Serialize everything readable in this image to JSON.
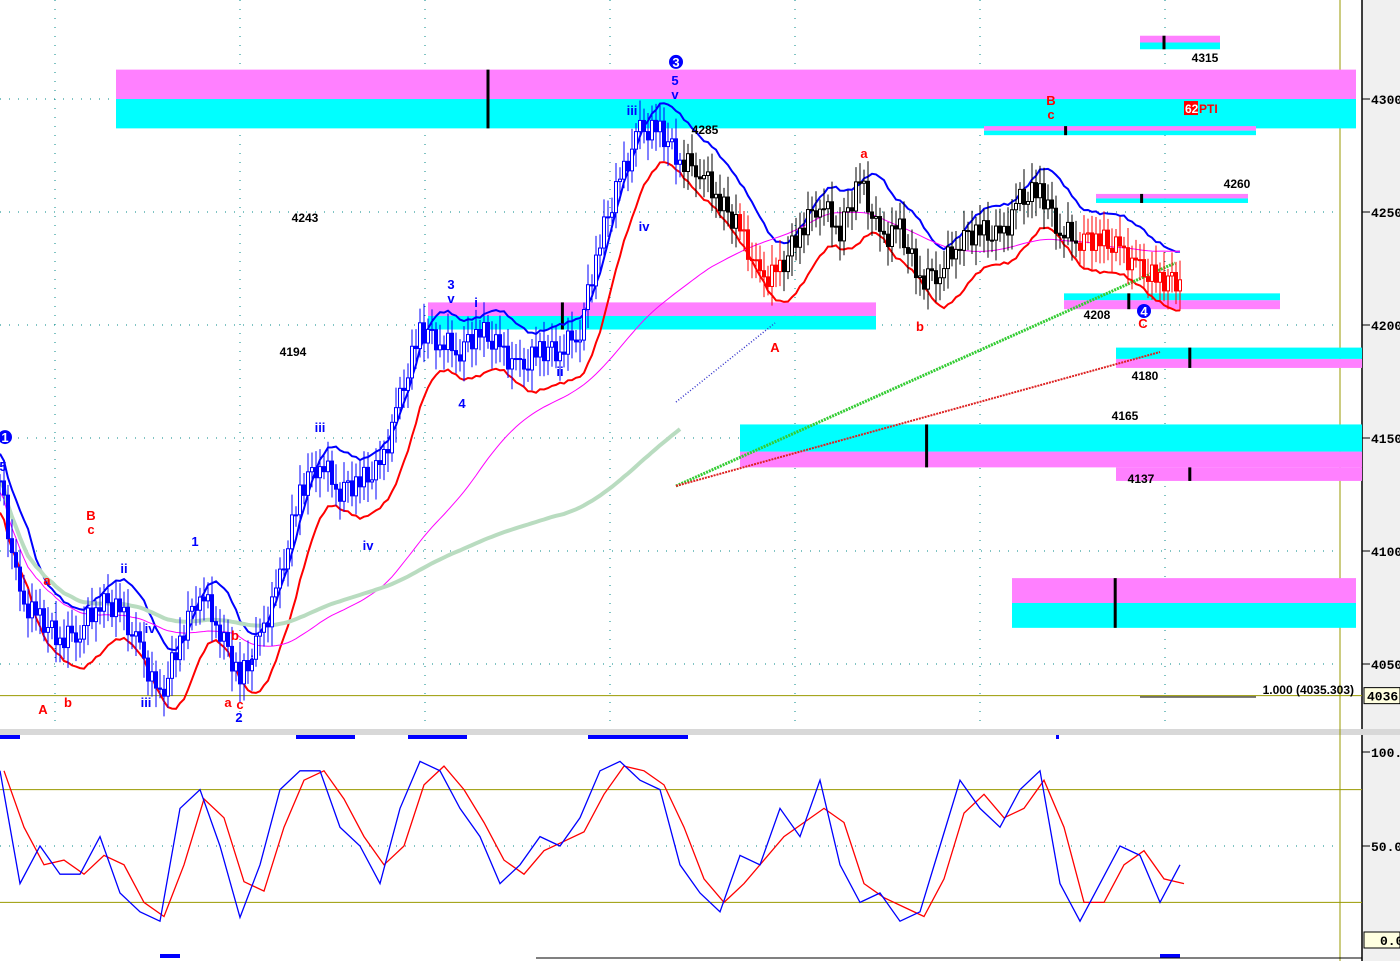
{
  "chart_data": [
    {
      "type": "candlestick",
      "title": "",
      "ylim": [
        4020,
        4340
      ],
      "y_ticks": [
        "4300",
        "4250",
        "4200",
        "4150",
        "4100",
        "4050"
      ],
      "last_value_box": "4036.",
      "grid": "dotted",
      "bar_step_label": "",
      "closes": [
        4131,
        4078,
        4070,
        4061,
        4065,
        4078,
        4074,
        4056,
        4034,
        4061,
        4083,
        4065,
        4043,
        4061,
        4087,
        4127,
        4140,
        4127,
        4131,
        4136,
        4167,
        4198,
        4193,
        4189,
        4198,
        4189,
        4180,
        4189,
        4189,
        4198,
        4238,
        4264,
        4286,
        4286,
        4273,
        4269,
        4255,
        4242,
        4220,
        4224,
        4242,
        4255,
        4242,
        4264,
        4238,
        4242,
        4220,
        4224,
        4238,
        4242,
        4238,
        4255,
        4260,
        4242,
        4238,
        4238,
        4233,
        4224,
        4220,
        4220
      ],
      "colors": {
        "up_phase": "#0000ff",
        "neutral": "#000000",
        "down_phase": "#ff0000",
        "upper_band": "#0000ff",
        "lower_band": "#ff0000",
        "ma": "#ff00ff",
        "long_ma": "#b9dcc0",
        "projection_up": "#33cc33",
        "projection_down": "#dd2222",
        "zone_magenta": "#ff80ff",
        "zone_cyan": "#00ffff",
        "ref_line": "#999900"
      },
      "reference_line": {
        "value": 4036,
        "label": "1.000 (4035.303)"
      },
      "zones": [
        {
          "from": 5.8,
          "to": 67.8,
          "magenta": [
            4300,
            4313
          ],
          "cyan": [
            4287,
            4300
          ]
        },
        {
          "from": 57,
          "to": 61,
          "magenta": [
            4325,
            4328
          ],
          "cyan": [
            4322,
            4325
          ]
        },
        {
          "from": 49.2,
          "to": 62.8,
          "magenta": [
            4286,
            4288
          ],
          "cyan": [
            4284,
            4286
          ]
        },
        {
          "from": 54.8,
          "to": 62.4,
          "magenta": [
            4256,
            4258
          ],
          "cyan": [
            4254,
            4256
          ]
        },
        {
          "from": 21.4,
          "to": 43.8,
          "magenta": [
            4204,
            4210
          ],
          "cyan": [
            4198,
            4204
          ]
        },
        {
          "from": 53.2,
          "to": 64,
          "magenta": [
            4207,
            4211
          ],
          "cyan": [
            4211,
            4214
          ]
        },
        {
          "from": 55.8,
          "to": 68.1,
          "magenta": [
            4181,
            4185
          ],
          "cyan": [
            4185,
            4190
          ]
        },
        {
          "from": 37,
          "to": 68.1,
          "magenta": [
            4137,
            4144
          ],
          "cyan": [
            4144,
            4156
          ]
        },
        {
          "from": 55.8,
          "to": 68.1,
          "magenta": [
            4131,
            4137
          ],
          "cyan": [
            4137,
            4137
          ]
        },
        {
          "from": 50.6,
          "to": 67.8,
          "magenta": [
            4077,
            4088
          ],
          "cyan": [
            4066,
            4077
          ]
        }
      ],
      "wave_labels": [
        {
          "text": "1",
          "color": "#0000ff",
          "bar": 0.25,
          "price": 4150.4,
          "circled": true
        },
        {
          "text": "5",
          "color": "#0000ff",
          "bar": 0.15,
          "price": 4137.6
        },
        {
          "text": "A",
          "color": "#ff0000",
          "bar": 2.15,
          "price": 4030.1
        },
        {
          "text": "a",
          "color": "#ff0000",
          "bar": 2.35,
          "price": 4087.2
        },
        {
          "text": "b",
          "color": "#ff0000",
          "bar": 3.4,
          "price": 4033.2
        },
        {
          "text": "B",
          "color": "#ff0000",
          "bar": 4.55,
          "price": 4115.9
        },
        {
          "text": "c",
          "color": "#ff0000",
          "bar": 4.55,
          "price": 4109.7
        },
        {
          "text": "ii",
          "color": "#0000ff",
          "bar": 6.2,
          "price": 4092.5
        },
        {
          "text": "iv",
          "color": "#0000ff",
          "bar": 7.5,
          "price": 4065.9
        },
        {
          "text": "iii",
          "color": "#0000ff",
          "bar": 7.3,
          "price": 4033.2
        },
        {
          "text": "1",
          "color": "#0000ff",
          "bar": 9.75,
          "price": 4104.4
        },
        {
          "text": "a",
          "color": "#ff0000",
          "bar": 11.4,
          "price": 4033.2
        },
        {
          "text": "c",
          "color": "#ff0000",
          "bar": 12.0,
          "price": 4032.3
        },
        {
          "text": "2",
          "color": "#0000ff",
          "bar": 11.95,
          "price": 4026.5
        },
        {
          "text": "b",
          "color": "#ff0000",
          "bar": 11.75,
          "price": 4062.8
        },
        {
          "text": "i",
          "color": "#0000ff",
          "bar": 12.6,
          "price": 4051.8
        },
        {
          "text": "iii",
          "color": "#0000ff",
          "bar": 16.0,
          "price": 4154.9
        },
        {
          "text": "iv",
          "color": "#0000ff",
          "bar": 18.4,
          "price": 4102.7
        },
        {
          "text": "3",
          "color": "#0000ff",
          "bar": 22.55,
          "price": 4218.1
        },
        {
          "text": "v",
          "color": "#0000ff",
          "bar": 22.55,
          "price": 4211.9
        },
        {
          "text": "i",
          "color": "#0000ff",
          "bar": 23.8,
          "price": 4210.2
        },
        {
          "text": "4",
          "color": "#0000ff",
          "bar": 23.1,
          "price": 4165.5
        },
        {
          "text": "ii",
          "color": "#0000ff",
          "bar": 28.0,
          "price": 4179.6
        },
        {
          "text": "iii",
          "color": "#0000ff",
          "bar": 31.6,
          "price": 4295.1
        },
        {
          "text": "iv",
          "color": "#0000ff",
          "bar": 32.2,
          "price": 4243.8
        },
        {
          "text": "5",
          "color": "#0000ff",
          "bar": 33.75,
          "price": 4308.4
        },
        {
          "text": "v",
          "color": "#0000ff",
          "bar": 33.75,
          "price": 4302.2
        },
        {
          "text": "3",
          "color": "#0000ff",
          "bar": 33.8,
          "price": 4316.4,
          "circled": true
        },
        {
          "text": "a",
          "color": "#ff0000",
          "bar": 43.2,
          "price": 4276.1
        },
        {
          "text": "A",
          "color": "#ff0000",
          "bar": 38.75,
          "price": 4190.3
        },
        {
          "text": "b",
          "color": "#ff0000",
          "bar": 46.0,
          "price": 4199.6
        },
        {
          "text": "B",
          "color": "#ff0000",
          "bar": 52.55,
          "price": 4299.6
        },
        {
          "text": "c",
          "color": "#ff0000",
          "bar": 52.55,
          "price": 4293.4
        },
        {
          "text": "C",
          "color": "#ff0000",
          "bar": 57.15,
          "price": 4200.9
        },
        {
          "text": "4",
          "color": "#0000ff",
          "bar": 57.2,
          "price": 4206.2,
          "circled": true
        }
      ],
      "price_labels": [
        {
          "text": "4315",
          "bar": 60.25,
          "price": 4318.1
        },
        {
          "text": "4285",
          "bar": 35.25,
          "price": 4286.3
        },
        {
          "text": "4243",
          "bar": 15.25,
          "price": 4247.3
        },
        {
          "text": "4194",
          "bar": 14.65,
          "price": 4188.1
        },
        {
          "text": "4260",
          "bar": 61.85,
          "price": 4262.4
        },
        {
          "text": "4208",
          "bar": 54.85,
          "price": 4204.4
        },
        {
          "text": "4180",
          "bar": 57.25,
          "price": 4177.4
        },
        {
          "text": "4165",
          "bar": 56.25,
          "price": 4159.7
        },
        {
          "text": "4137",
          "bar": 57.05,
          "price": 4131.9
        }
      ],
      "badge": {
        "number": "62",
        "text": "PTI",
        "bar": 60.0,
        "price": 4296
      }
    },
    {
      "type": "line",
      "title": "",
      "ylim": [
        0,
        100
      ],
      "y_ticks": [
        "100.0",
        "50.00"
      ],
      "last_value_box": "0.0",
      "levels": [
        80,
        20
      ],
      "series": [
        {
          "color": "#0000ff",
          "values": [
            90,
            30,
            50,
            35,
            35,
            55,
            25,
            15,
            10,
            70,
            80,
            50,
            12,
            40,
            80,
            90,
            90,
            60,
            50,
            30,
            70,
            95,
            90,
            70,
            55,
            30,
            40,
            55,
            50,
            65,
            90,
            95,
            85,
            80,
            40,
            25,
            15,
            45,
            40,
            70,
            55,
            85,
            40,
            20,
            25,
            10,
            15,
            50,
            85,
            70,
            60,
            80,
            90,
            30,
            10,
            30,
            50,
            45,
            20,
            40
          ]
        },
        {
          "color": "#ff0000",
          "lag": 1
        }
      ]
    }
  ]
}
